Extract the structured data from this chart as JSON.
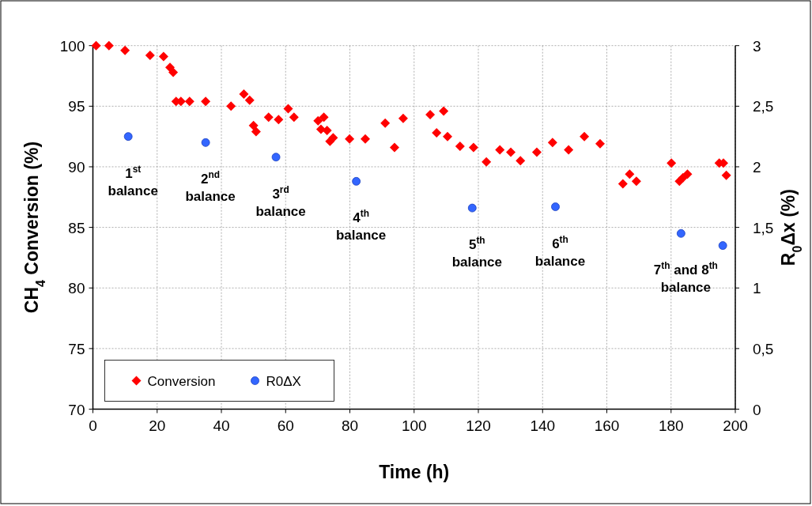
{
  "chart_data": {
    "type": "scatter",
    "xlabel": "Time (h)",
    "ylabel": "CH$_{4}$ Conversion (%)",
    "y2label": "R$_{0}$Δx (%)",
    "xlim": [
      0,
      200
    ],
    "xticks": [
      0,
      20,
      40,
      60,
      80,
      100,
      120,
      140,
      160,
      180,
      200
    ],
    "ylim": [
      70,
      100
    ],
    "yticks": [
      70,
      75,
      80,
      85,
      90,
      95,
      100
    ],
    "y2lim": [
      0,
      3
    ],
    "y2ticks": [
      {
        "value": 0,
        "label": "0"
      },
      {
        "value": 0.5,
        "label": "0,5"
      },
      {
        "value": 1,
        "label": "1"
      },
      {
        "value": 1.5,
        "label": "1,5"
      },
      {
        "value": 2,
        "label": "2"
      },
      {
        "value": 2.5,
        "label": "2,5"
      },
      {
        "value": 3,
        "label": "3"
      }
    ],
    "grid": true,
    "legend": "bottom left",
    "series": [
      {
        "name": "Conversion",
        "color": "#ff0000",
        "marker": "diamond",
        "x": [
          1,
          5,
          10,
          17.8,
          22,
          24,
          25,
          25.9,
          27.4,
          30.1,
          35.1,
          43,
          47,
          48.8,
          50,
          50.8,
          54.7,
          57.8,
          60.8,
          62.6,
          70.1,
          71,
          71.9,
          72.9,
          73.8,
          74.8,
          79.9,
          84.8,
          91,
          93.9,
          96.6,
          105,
          107,
          109.2,
          110.4,
          114.3,
          118.5,
          122.5,
          126.7,
          130.1,
          133.1,
          138.2,
          143.1,
          148.1,
          153,
          157.9,
          165,
          167.1,
          169.2,
          180.1,
          182.6,
          183.7,
          185.1,
          195,
          196.3,
          197.2
        ],
        "values": [
          100,
          100,
          99.6,
          99.2,
          99.1,
          98.2,
          97.8,
          95.4,
          95.4,
          95.4,
          95.4,
          95,
          96,
          95.5,
          93.4,
          92.9,
          94.1,
          93.9,
          94.8,
          94.1,
          93.8,
          93.1,
          94.1,
          93,
          92.1,
          92.4,
          92.3,
          92.3,
          93.6,
          91.6,
          94,
          94.3,
          92.8,
          94.6,
          92.5,
          91.7,
          91.6,
          90.4,
          91.4,
          91.2,
          90.5,
          91.2,
          92,
          91.4,
          92.5,
          91.9,
          88.6,
          89.4,
          88.8,
          90.3,
          88.8,
          89.1,
          89.4,
          90.3,
          90.3,
          89.3
        ]
      },
      {
        "name": "R0ΔX",
        "color": "#3366ff",
        "marker": "circle",
        "axis": "y2",
        "x": [
          11,
          35.1,
          57,
          82,
          118.1,
          144,
          183.1,
          196.1
        ],
        "values": [
          2.25,
          2.2,
          2.08,
          1.88,
          1.66,
          1.67,
          1.45,
          1.35
        ]
      }
    ],
    "annotations": [
      "1$^{st}$\nbalance",
      "2$^{nd}$\nbalance",
      "3$^{rd}$\nbalance",
      "4$^{th}$\nbalance",
      "5$^{th}$\nbalance",
      "6$^{th}$\nbalance",
      "7$^{th}$ and 8$^{th}$\nbalance"
    ]
  }
}
